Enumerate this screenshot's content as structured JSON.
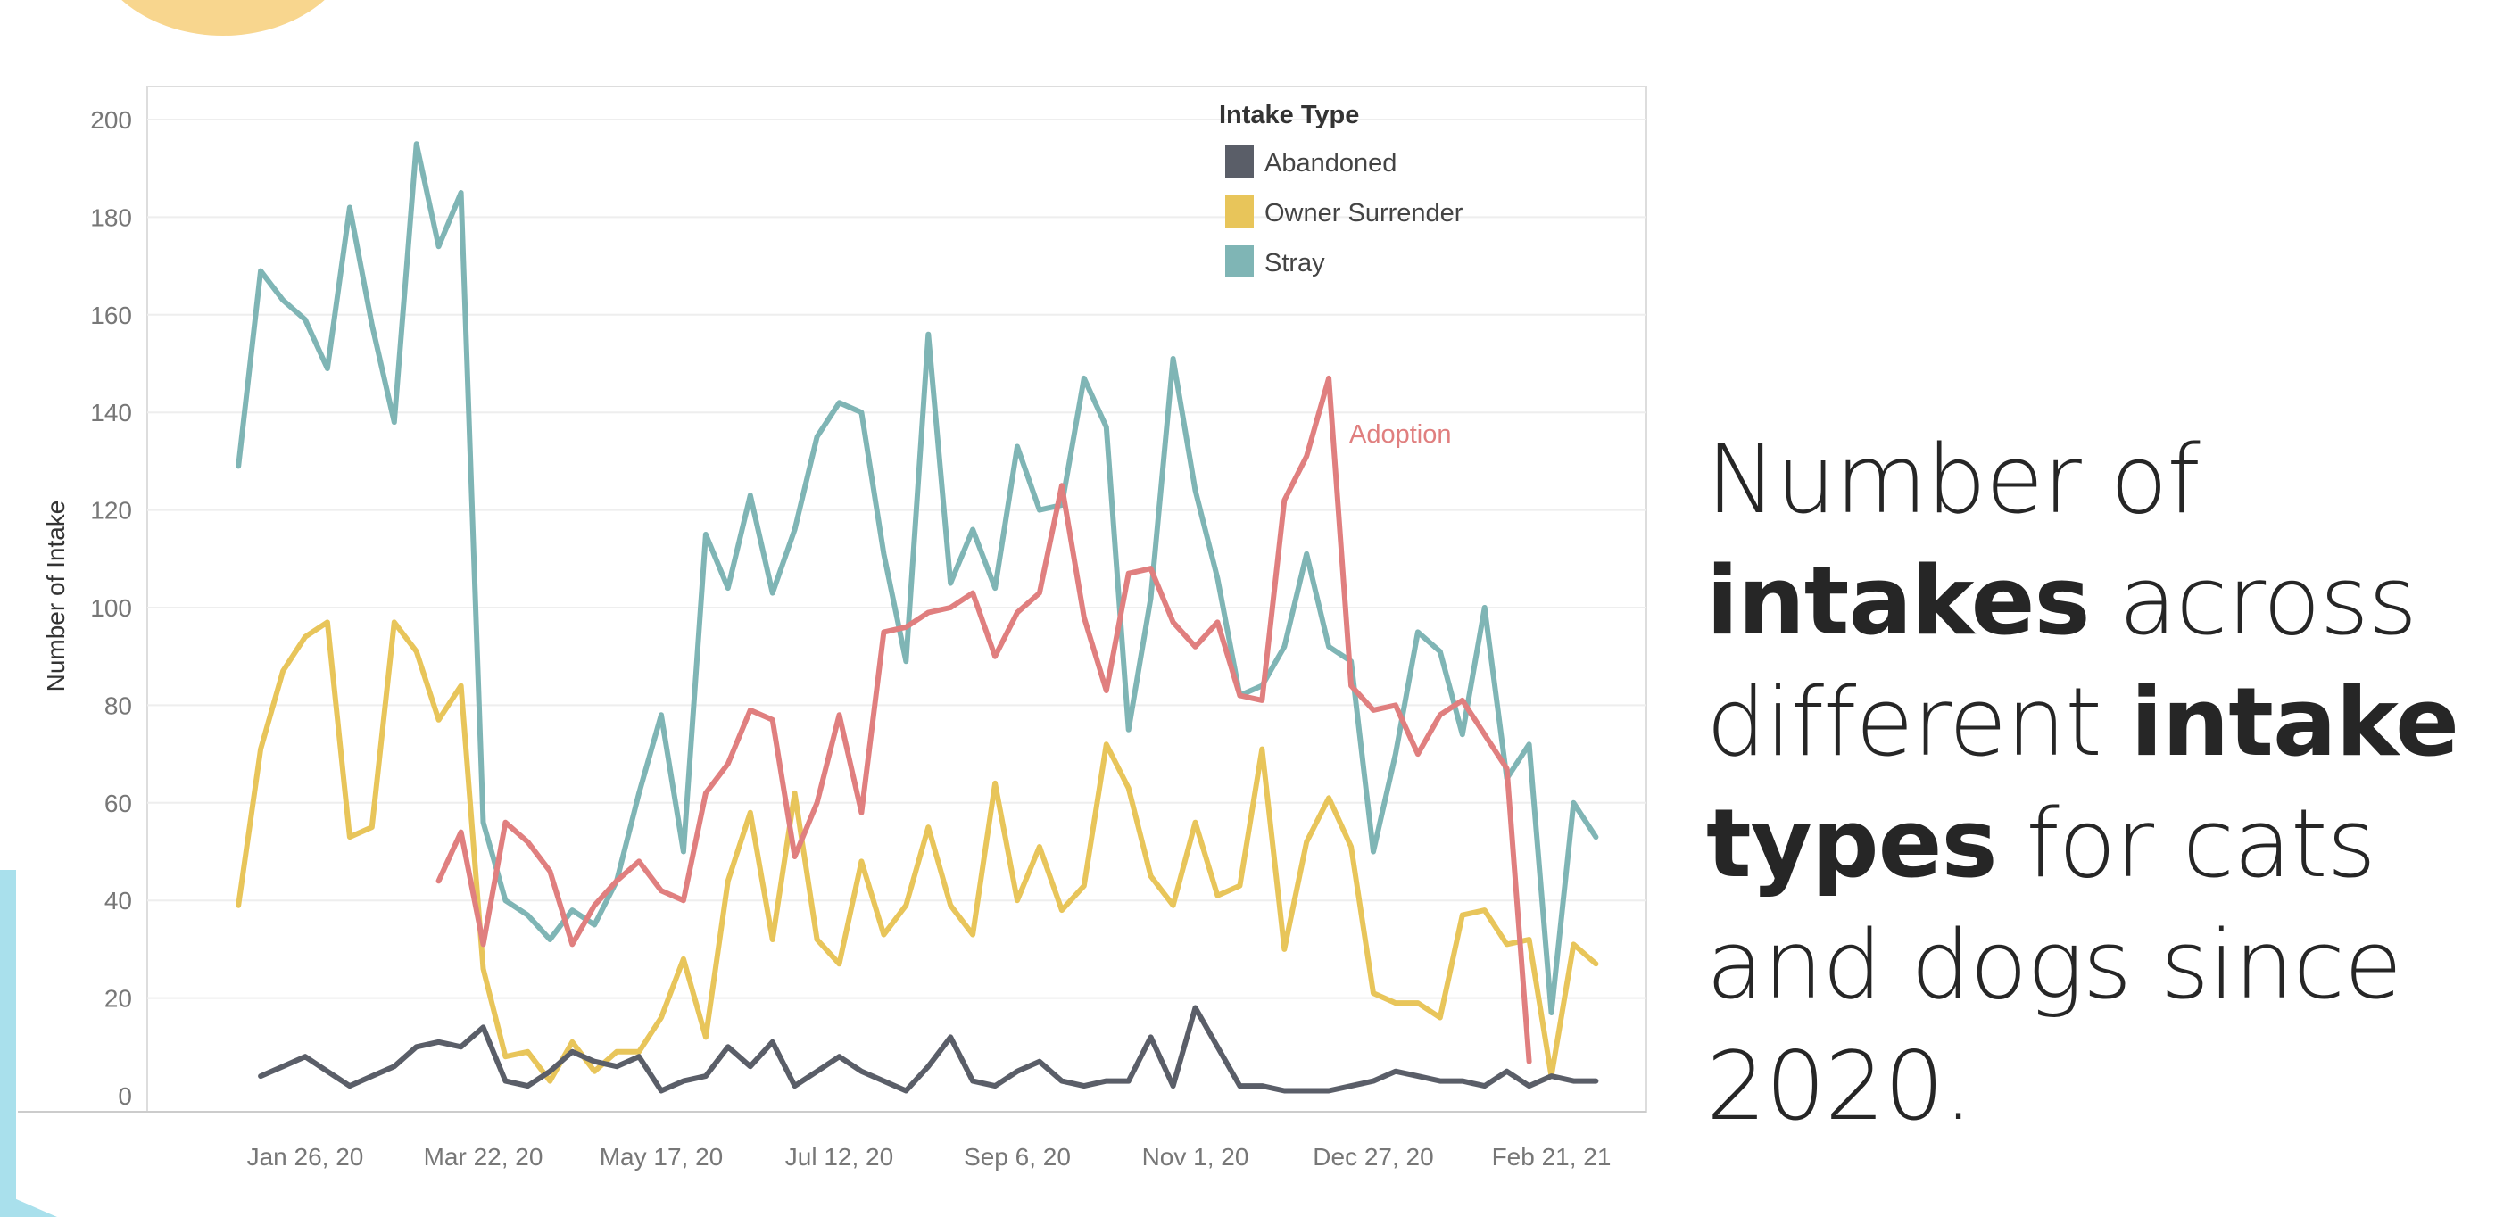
{
  "headline": {
    "parts": [
      {
        "text": "Number of ",
        "bold": false
      },
      {
        "text": "intakes",
        "bold": true
      },
      {
        "text": " across different ",
        "bold": false
      },
      {
        "text": "intake types",
        "bold": true
      },
      {
        "text": " for cats and dogs since 2020.",
        "bold": false
      }
    ]
  },
  "chart_data": {
    "type": "line",
    "title": "",
    "xlabel": "",
    "ylabel": "Number of Intake",
    "ylim": [
      0,
      200
    ],
    "yticks": [
      0,
      20,
      40,
      60,
      80,
      100,
      120,
      140,
      160,
      180,
      200
    ],
    "x_tick_labels": [
      "Jan 26, 20",
      "Mar 22, 20",
      "May 17, 20",
      "Jul 12, 20",
      "Sep 6, 20",
      "Nov 1, 20",
      "Dec 27, 20",
      "Feb 21, 21"
    ],
    "x_tick_dates": [
      "2020-01-26",
      "2020-03-22",
      "2020-05-17",
      "2020-07-12",
      "2020-09-06",
      "2020-11-01",
      "2020-12-27",
      "2021-02-21"
    ],
    "grid": true,
    "legend": {
      "title": "Intake Type",
      "position": "top-right",
      "entries": [
        "Abandoned",
        "Owner Surrender",
        "Stray"
      ]
    },
    "annotations": [
      {
        "text": "Adoption",
        "series": "Adoption",
        "color": "#e07f7f"
      }
    ],
    "series": [
      {
        "name": "Stray",
        "color": "#7fb5b5",
        "x_start": "2020-01-05",
        "values": [
          129,
          169,
          163,
          159,
          149,
          182,
          158,
          138,
          195,
          174,
          185,
          56,
          40,
          37,
          32,
          38,
          35,
          44,
          62,
          78,
          50,
          115,
          104,
          123,
          103,
          116,
          135,
          142,
          140,
          111,
          89,
          156,
          105,
          116,
          104,
          133,
          120,
          121,
          147,
          137,
          75,
          102,
          151,
          124,
          106,
          82,
          84,
          92,
          111,
          92,
          89,
          50,
          70,
          95,
          91,
          74,
          100,
          65,
          72,
          17,
          60,
          53
        ]
      },
      {
        "name": "Owner Surrender",
        "color": "#e8c55a",
        "x_start": "2020-01-05",
        "values": [
          39,
          71,
          87,
          94,
          97,
          53,
          55,
          97,
          91,
          77,
          84,
          26,
          8,
          9,
          3,
          11,
          5,
          9,
          9,
          16,
          28,
          12,
          44,
          58,
          32,
          62,
          32,
          27,
          48,
          33,
          39,
          55,
          39,
          33,
          64,
          40,
          51,
          38,
          43,
          72,
          63,
          45,
          39,
          56,
          41,
          43,
          71,
          30,
          52,
          61,
          51,
          21,
          19,
          19,
          16,
          37,
          38,
          31,
          32,
          4,
          31,
          27
        ]
      },
      {
        "name": "Abandoned",
        "color": "#5a5e68",
        "x_start": "2020-01-12",
        "values": [
          4,
          6,
          8,
          5,
          2,
          4,
          6,
          10,
          11,
          10,
          14,
          3,
          2,
          5,
          9,
          7,
          6,
          8,
          1,
          3,
          4,
          10,
          6,
          11,
          2,
          5,
          8,
          5,
          3,
          1,
          6,
          12,
          3,
          2,
          5,
          7,
          3,
          2,
          3,
          3,
          12,
          2,
          18,
          10,
          2,
          2,
          1,
          1,
          1,
          2,
          3,
          5,
          4,
          3,
          3,
          2,
          5,
          2,
          4,
          3,
          3
        ]
      },
      {
        "name": "Adoption",
        "color": "#e07f7f",
        "x_start": "2020-03-08",
        "values": [
          44,
          54,
          31,
          56,
          52,
          46,
          31,
          39,
          44,
          48,
          42,
          40,
          62,
          68,
          79,
          77,
          49,
          60,
          78,
          58,
          95,
          96,
          99,
          100,
          103,
          90,
          99,
          103,
          125,
          98,
          83,
          107,
          108,
          97,
          92,
          97,
          82,
          81,
          122,
          131,
          147,
          84,
          79,
          80,
          70,
          78,
          81,
          74,
          67,
          7
        ]
      }
    ]
  }
}
